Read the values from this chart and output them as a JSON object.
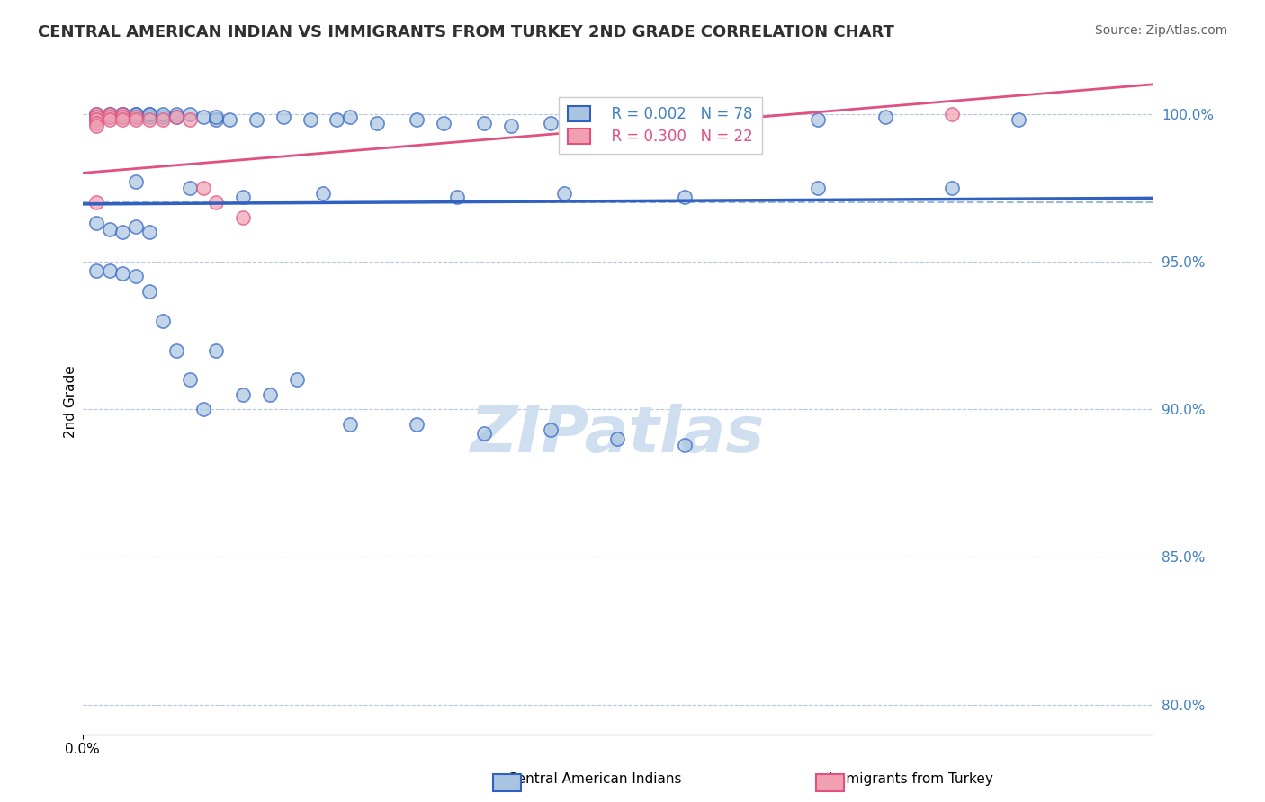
{
  "title": "CENTRAL AMERICAN INDIAN VS IMMIGRANTS FROM TURKEY 2ND GRADE CORRELATION CHART",
  "source_text": "Source: ZipAtlas.com",
  "xlabel": "",
  "ylabel": "2nd Grade",
  "x_min": 0.0,
  "x_max": 0.08,
  "y_min": 0.79,
  "y_max": 1.015,
  "y_tick_labels": [
    "80.0%",
    "85.0%",
    "90.0%",
    "95.0%",
    "100.0%"
  ],
  "y_tick_positions": [
    0.8,
    0.85,
    0.9,
    0.95,
    1.0
  ],
  "legend_r1": "R = 0.002",
  "legend_n1": "N = 78",
  "legend_r2": "R = 0.300",
  "legend_n2": "N = 22",
  "color_blue": "#a8c4e0",
  "color_pink": "#f0a0b0",
  "color_blue_line": "#3060c0",
  "color_pink_line": "#e05080",
  "color_dashed": "#a0b8d8",
  "watermark_color": "#d0dff0",
  "blue_scatter_x": [
    0.001,
    0.001,
    0.001,
    0.002,
    0.002,
    0.002,
    0.002,
    0.003,
    0.003,
    0.003,
    0.003,
    0.003,
    0.004,
    0.004,
    0.004,
    0.005,
    0.005,
    0.005,
    0.006,
    0.006,
    0.007,
    0.007,
    0.008,
    0.009,
    0.01,
    0.01,
    0.011,
    0.013,
    0.015,
    0.017,
    0.019,
    0.02,
    0.022,
    0.025,
    0.027,
    0.03,
    0.032,
    0.035,
    0.038,
    0.042,
    0.046,
    0.05,
    0.055,
    0.06,
    0.004,
    0.008,
    0.012,
    0.018,
    0.028,
    0.036,
    0.045,
    0.055,
    0.065,
    0.001,
    0.002,
    0.003,
    0.004,
    0.005,
    0.001,
    0.002,
    0.003,
    0.004,
    0.005,
    0.006,
    0.007,
    0.008,
    0.009,
    0.01,
    0.012,
    0.014,
    0.016,
    0.02,
    0.025,
    0.03,
    0.035,
    0.04,
    0.045,
    0.07
  ],
  "blue_scatter_y": [
    0.998,
    1.0,
    0.999,
    0.999,
    1.0,
    0.999,
    1.0,
    0.999,
    1.0,
    1.0,
    0.999,
    1.0,
    1.0,
    0.999,
    1.0,
    1.0,
    0.999,
    1.0,
    0.999,
    1.0,
    1.0,
    0.999,
    1.0,
    0.999,
    0.998,
    0.999,
    0.998,
    0.998,
    0.999,
    0.998,
    0.998,
    0.999,
    0.997,
    0.998,
    0.997,
    0.997,
    0.996,
    0.997,
    0.998,
    0.996,
    0.997,
    0.998,
    0.998,
    0.999,
    0.977,
    0.975,
    0.972,
    0.973,
    0.972,
    0.973,
    0.972,
    0.975,
    0.975,
    0.963,
    0.961,
    0.96,
    0.962,
    0.96,
    0.947,
    0.947,
    0.946,
    0.945,
    0.94,
    0.93,
    0.92,
    0.91,
    0.9,
    0.92,
    0.905,
    0.905,
    0.91,
    0.895,
    0.895,
    0.892,
    0.893,
    0.89,
    0.888,
    0.998
  ],
  "pink_scatter_x": [
    0.001,
    0.001,
    0.001,
    0.001,
    0.001,
    0.002,
    0.002,
    0.002,
    0.003,
    0.003,
    0.003,
    0.004,
    0.004,
    0.005,
    0.006,
    0.007,
    0.008,
    0.009,
    0.01,
    0.012,
    0.065,
    0.001
  ],
  "pink_scatter_y": [
    1.0,
    0.999,
    0.998,
    0.997,
    0.996,
    1.0,
    0.999,
    0.998,
    1.0,
    0.999,
    0.998,
    0.999,
    0.998,
    0.998,
    0.998,
    0.999,
    0.998,
    0.975,
    0.97,
    0.965,
    1.0,
    0.97
  ],
  "blue_line_x": [
    0.0,
    0.08
  ],
  "blue_line_y": [
    0.9695,
    0.9715
  ],
  "pink_line_x": [
    0.0,
    0.08
  ],
  "pink_line_y": [
    0.98,
    1.01
  ],
  "dashed_line_x": [
    0.0,
    0.08
  ],
  "dashed_line_y": [
    0.97,
    0.97
  ]
}
